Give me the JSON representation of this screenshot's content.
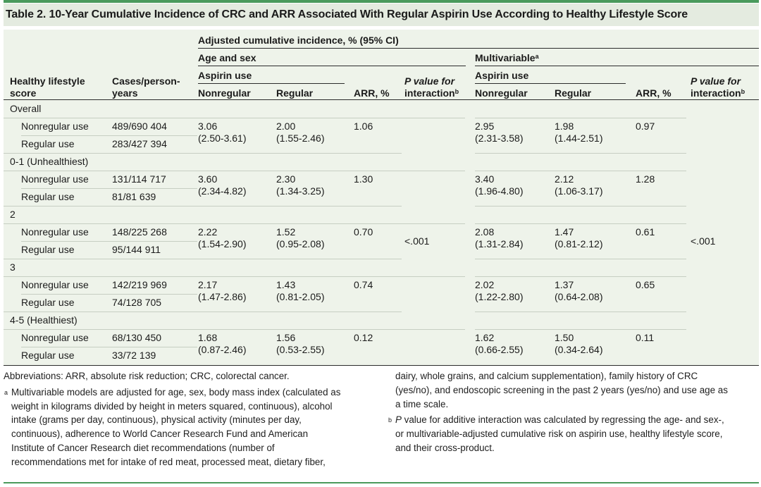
{
  "table_title": "Table 2. 10-Year Cumulative Incidence of CRC and ARR Associated With Regular Aspirin Use According to Healthy Lifestyle Score",
  "headers": {
    "spanner": "Adjusted cumulative incidence, % (95% CI)",
    "age_sex": "Age and sex",
    "multivariable": "Multivariable",
    "multivariable_note": "a",
    "aspirin_use_1": "Aspirin use",
    "aspirin_use_2": "Aspirin use",
    "lifestyle_line1": "Healthy lifestyle",
    "lifestyle_line2": "score",
    "cases_line1": "Cases/person-",
    "cases_line2": "years",
    "nonregular_1": "Nonregular",
    "regular_1": "Regular",
    "arr_1": "ARR, %",
    "pval_line1_1": "P value for",
    "pval_line2_1": "interaction",
    "pval_note_1": "b",
    "nonregular_2": "Nonregular",
    "regular_2": "Regular",
    "arr_2": "ARR, %",
    "pval_line1_2": "P value for",
    "pval_line2_2": "interaction",
    "pval_note_2": "b"
  },
  "groups": [
    {
      "label": "Overall",
      "rows": [
        {
          "label": "Nonregular use",
          "cases": "489/690 404"
        },
        {
          "label": "Regular use",
          "cases": "283/427 394"
        }
      ],
      "as_nonreg": "3.06",
      "as_nonreg_ci": "(2.50-3.61)",
      "as_reg": "2.00",
      "as_reg_ci": "(1.55-2.46)",
      "as_arr": "1.06",
      "mv_nonreg": "2.95",
      "mv_nonreg_ci": "(2.31-3.58)",
      "mv_reg": "1.98",
      "mv_reg_ci": "(1.44-2.51)",
      "mv_arr": "0.97"
    },
    {
      "label": "0-1 (Unhealthiest)",
      "rows": [
        {
          "label": "Nonregular use",
          "cases": "131/114 717"
        },
        {
          "label": "Regular use",
          "cases": "81/81 639"
        }
      ],
      "as_nonreg": "3.60",
      "as_nonreg_ci": "(2.34-4.82)",
      "as_reg": "2.30",
      "as_reg_ci": "(1.34-3.25)",
      "as_arr": "1.30",
      "mv_nonreg": "3.40",
      "mv_nonreg_ci": "(1.96-4.80)",
      "mv_reg": "2.12",
      "mv_reg_ci": "(1.06-3.17)",
      "mv_arr": "1.28"
    },
    {
      "label": "2",
      "rows": [
        {
          "label": "Nonregular use",
          "cases": "148/225 268"
        },
        {
          "label": "Regular use",
          "cases": "95/144 911"
        }
      ],
      "as_nonreg": "2.22",
      "as_nonreg_ci": "(1.54-2.90)",
      "as_reg": "1.52",
      "as_reg_ci": "(0.95-2.08)",
      "as_arr": "0.70",
      "mv_nonreg": "2.08",
      "mv_nonreg_ci": "(1.31-2.84)",
      "mv_reg": "1.47",
      "mv_reg_ci": "(0.81-2.12)",
      "mv_arr": "0.61"
    },
    {
      "label": "3",
      "rows": [
        {
          "label": "Nonregular use",
          "cases": "142/219 969"
        },
        {
          "label": "Regular use",
          "cases": "74/128 705"
        }
      ],
      "as_nonreg": "2.17",
      "as_nonreg_ci": "(1.47-2.86)",
      "as_reg": "1.43",
      "as_reg_ci": "(0.81-2.05)",
      "as_arr": "0.74",
      "mv_nonreg": "2.02",
      "mv_nonreg_ci": "(1.22-2.80)",
      "mv_reg": "1.37",
      "mv_reg_ci": "(0.64-2.08)",
      "mv_arr": "0.65"
    },
    {
      "label": "4-5 (Healthiest)",
      "rows": [
        {
          "label": "Nonregular use",
          "cases": "68/130 450"
        },
        {
          "label": "Regular use",
          "cases": "33/72 139"
        }
      ],
      "as_nonreg": "1.68",
      "as_nonreg_ci": "(0.87-2.46)",
      "as_reg": "1.56",
      "as_reg_ci": "(0.53-2.55)",
      "as_arr": "0.12",
      "mv_nonreg": "1.62",
      "mv_nonreg_ci": "(0.66-2.55)",
      "mv_reg": "1.50",
      "mv_reg_ci": "(0.34-2.64)",
      "mv_arr": "0.11"
    }
  ],
  "p_interaction_age_sex": "<.001",
  "p_interaction_multivariable": "<.001",
  "footnotes": {
    "abbreviations": "Abbreviations: ARR, absolute risk reduction; CRC, colorectal cancer.",
    "a_marker": "a",
    "a_text_lines": [
      "Multivariable models are adjusted for age, sex, body mass index (calculated as",
      "weight in kilograms divided by height in meters squared, continuous), alcohol",
      "intake (grams per day, continuous), physical activity (minutes per day,",
      "continuous), adherence to World Cancer Research Fund and American",
      "Institute of Cancer Research diet recommendations (number of",
      "recommendations met for intake of red meat, processed meat, dietary fiber,"
    ],
    "a_continued_lines": [
      "dairy, whole grains, and calcium supplementation), family history of CRC",
      "(yes/no), and endoscopic screening in the past 2 years (yes/no) and use age as",
      "a time scale."
    ],
    "b_marker": "b",
    "b_italic": "P",
    "b_first_rest": " value for additive interaction was calculated by regressing the age- and sex-,",
    "b_text_lines": [
      "or multivariable-adjusted cumulative risk on aspirin use, healthy lifestyle score,",
      "and their cross-product."
    ]
  }
}
